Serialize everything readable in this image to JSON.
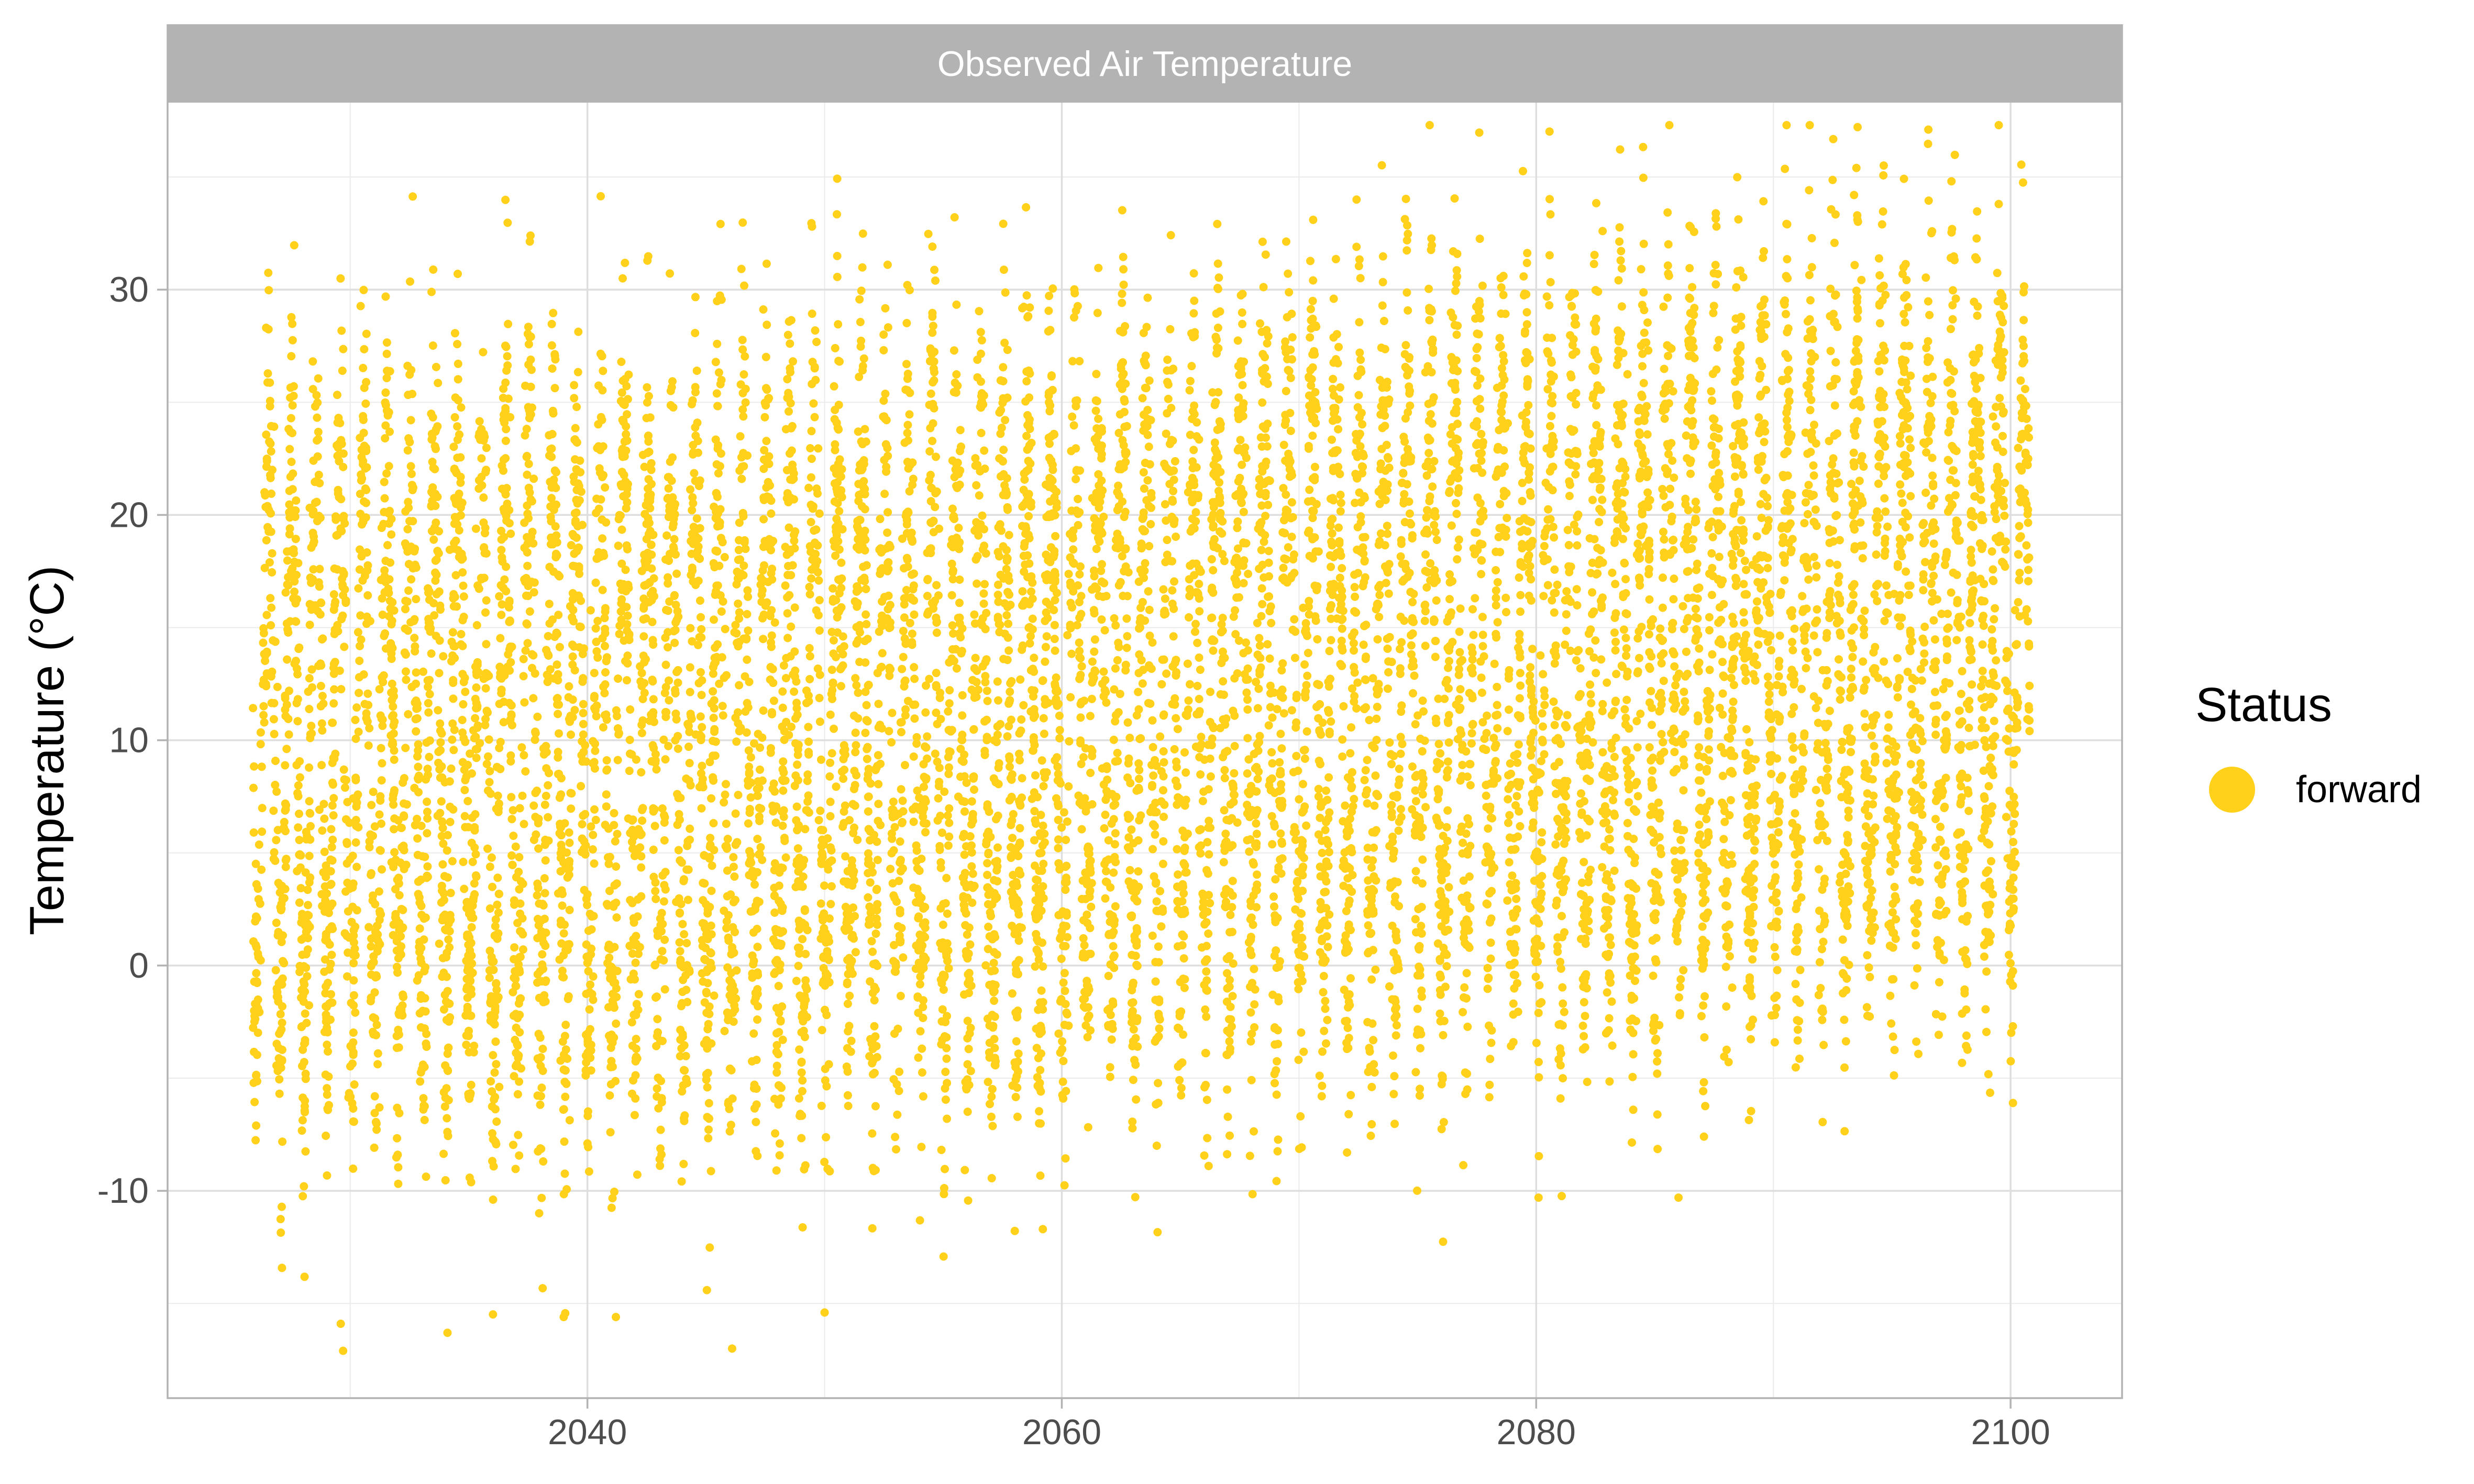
{
  "chart_data": {
    "type": "scatter",
    "facet_title": "Observed Air Temperature",
    "title": "",
    "xlabel": "",
    "ylabel": "Temperature (°C)",
    "xlim": [
      2022.3,
      2104.7
    ],
    "ylim": [
      -19.2,
      38.3
    ],
    "x_ticks": [
      2040,
      2060,
      2080,
      2100
    ],
    "y_ticks": [
      -10,
      0,
      10,
      20,
      30
    ],
    "x_tick_labels": [
      "2040",
      "2060",
      "2080",
      "2100"
    ],
    "y_tick_labels": [
      "-10",
      "0",
      "10",
      "20",
      "30"
    ],
    "grid": true,
    "legend": {
      "title": "Status",
      "position": "right",
      "entries": [
        {
          "name": "forward",
          "color": "#FFD11A"
        }
      ]
    },
    "series": [
      {
        "name": "forward",
        "color": "#FFD11A",
        "x_range": [
          2025.9,
          2100.8
        ],
        "seasonal_low_trend": [
          [
            2026,
            -2
          ],
          [
            2040,
            -3
          ],
          [
            2060,
            -1
          ],
          [
            2080,
            1
          ],
          [
            2100,
            3
          ]
        ],
        "seasonal_high_trend": [
          [
            2026,
            22
          ],
          [
            2040,
            22
          ],
          [
            2060,
            24
          ],
          [
            2080,
            26
          ],
          [
            2100,
            26
          ]
        ],
        "notable_points": [
          {
            "x": 2093.5,
            "y": 35.4
          },
          {
            "x": 2093.4,
            "y": 34.2
          },
          {
            "x": 2099.5,
            "y": 33.8
          },
          {
            "x": 2037.6,
            "y": 32.4
          },
          {
            "x": 2082.8,
            "y": 32.6
          },
          {
            "x": 2087.6,
            "y": 32.8
          },
          {
            "x": 2029.7,
            "y": -17.1
          },
          {
            "x": 2029.6,
            "y": -15.9
          },
          {
            "x": 2046.1,
            "y": -17.0
          },
          {
            "x": 2034.1,
            "y": -16.3
          },
          {
            "x": 2039.0,
            "y": -15.6
          },
          {
            "x": 2041.2,
            "y": -15.6
          },
          {
            "x": 2050.0,
            "y": -15.4
          },
          {
            "x": 2059.2,
            "y": -11.7
          },
          {
            "x": 2080.1,
            "y": -10.3
          },
          {
            "x": 2086.0,
            "y": -10.3
          },
          {
            "x": 2100.1,
            "y": -6.1
          }
        ]
      }
    ]
  }
}
